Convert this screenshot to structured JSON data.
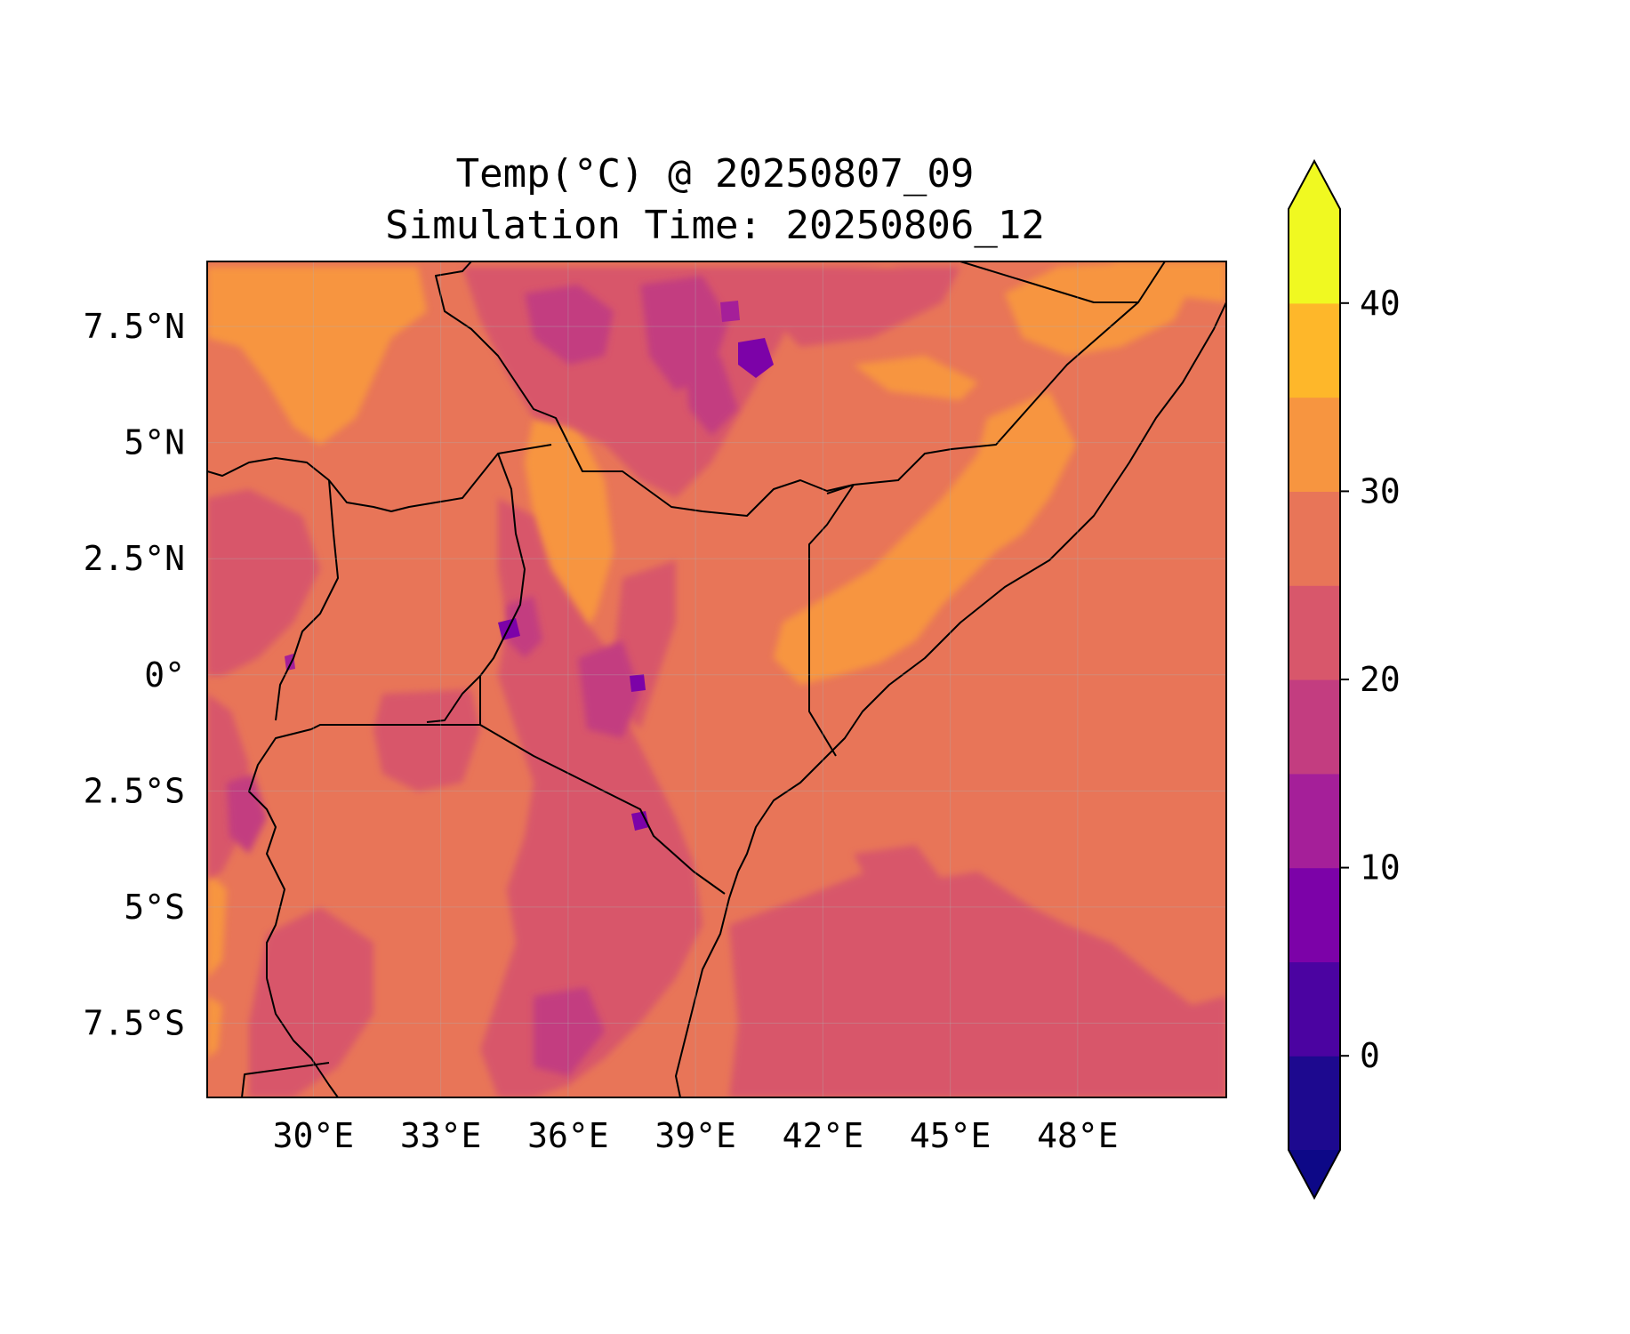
{
  "title": {
    "line1": "Temp(°C) @ 20250807_09",
    "line2": "Simulation Time: 20250806_12"
  },
  "map": {
    "lon_range": [
      27.5,
      51.5
    ],
    "lat_range": [
      -9.1,
      8.9
    ],
    "x_ticks": [
      {
        "value": 30,
        "label": "30°E"
      },
      {
        "value": 33,
        "label": "33°E"
      },
      {
        "value": 36,
        "label": "36°E"
      },
      {
        "value": 39,
        "label": "39°E"
      },
      {
        "value": 42,
        "label": "42°E"
      },
      {
        "value": 45,
        "label": "45°E"
      },
      {
        "value": 48,
        "label": "48°E"
      }
    ],
    "y_ticks": [
      {
        "value": 7.5,
        "label": "7.5°N"
      },
      {
        "value": 5,
        "label": "5°N"
      },
      {
        "value": 2.5,
        "label": "2.5°N"
      },
      {
        "value": 0,
        "label": "0°"
      },
      {
        "value": -2.5,
        "label": "2.5°S"
      },
      {
        "value": -5,
        "label": "5°S"
      },
      {
        "value": -7.5,
        "label": "7.5°S"
      }
    ],
    "gridlines": true,
    "background_color": "#e87558"
  },
  "colorbar": {
    "levels": [
      -5,
      0,
      5,
      10,
      15,
      20,
      25,
      30,
      35,
      40,
      45
    ],
    "colors": [
      "#1d098f",
      "#4b03a1",
      "#7c02a8",
      "#a51f99",
      "#c33d80",
      "#d8576b",
      "#e87558",
      "#f79540",
      "#feb72a",
      "#f0f921"
    ],
    "under_color": "#0d0887",
    "over_color": "#f0f921",
    "extend": "both",
    "ticks": [
      {
        "value": 0,
        "label": "0"
      },
      {
        "value": 10,
        "label": "10"
      },
      {
        "value": 20,
        "label": "20"
      },
      {
        "value": 30,
        "label": "30"
      },
      {
        "value": 40,
        "label": "40"
      }
    ]
  }
}
